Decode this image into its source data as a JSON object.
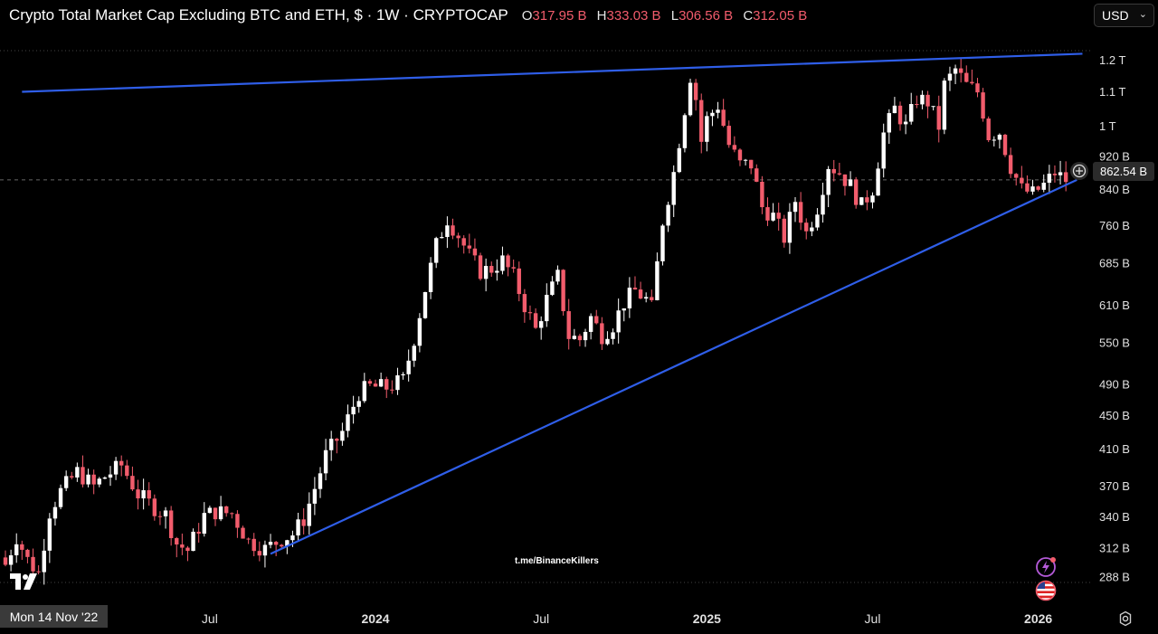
{
  "header": {
    "title": "Crypto Total Market Cap Excluding BTC and ETH, $ · 1W · CRYPTOCAP",
    "open_key": "O",
    "open": "317.95 B",
    "high_key": "H",
    "high": "333.03 B",
    "low_key": "L",
    "low": "306.56 B",
    "close_key": "C",
    "close": "312.05 B"
  },
  "currency_select": {
    "value": "USD"
  },
  "price_badge": "862.54 B",
  "date_badge": "Mon 14 Nov '22",
  "watermark": "t.me/BinanceKillers",
  "colors": {
    "up": "#ffffff",
    "down": "#f25c6c",
    "trendline": "#2f5ee8",
    "background": "#000000"
  },
  "icons": [
    "tradingview-logo-icon",
    "crosshair-plus-icon",
    "lightning-icon",
    "us-flag-icon",
    "gear-icon",
    "chevron-down-icon"
  ],
  "chart_data": {
    "type": "candlestick",
    "y_scale": "log",
    "ylim": [
      276,
      1270
    ],
    "y_ticks": [
      {
        "v": 1200,
        "label": "1.2 T"
      },
      {
        "v": 1100,
        "label": "1.1 T"
      },
      {
        "v": 1000,
        "label": "1 T"
      },
      {
        "v": 920,
        "label": "920 B"
      },
      {
        "v": 840,
        "label": "840 B"
      },
      {
        "v": 760,
        "label": "760 B"
      },
      {
        "v": 685,
        "label": "685 B"
      },
      {
        "v": 610,
        "label": "610 B"
      },
      {
        "v": 550,
        "label": "550 B"
      },
      {
        "v": 490,
        "label": "490 B"
      },
      {
        "v": 450,
        "label": "450 B"
      },
      {
        "v": 410,
        "label": "410 B"
      },
      {
        "v": 370,
        "label": "370 B"
      },
      {
        "v": 340,
        "label": "340 B"
      },
      {
        "v": 312,
        "label": "312 B"
      },
      {
        "v": 288,
        "label": "288 B"
      }
    ],
    "x_ticks": [
      {
        "week": 37,
        "label": "Jul",
        "bold": false
      },
      {
        "week": 67,
        "label": "2024",
        "bold": true
      },
      {
        "week": 97,
        "label": "Jul",
        "bold": false
      },
      {
        "week": 127,
        "label": "2025",
        "bold": true
      },
      {
        "week": 157,
        "label": "Jul",
        "bold": false
      },
      {
        "week": 187,
        "label": "2026",
        "bold": true
      }
    ],
    "current_price": 862.54,
    "trendlines": [
      {
        "name": "upper",
        "p1": {
          "week": 3,
          "value": 1100
        },
        "p2": {
          "week": 195,
          "value": 1222
        }
      },
      {
        "name": "lower",
        "p1": {
          "week": 48,
          "value": 307
        },
        "p2": {
          "week": 194,
          "value": 862.54
        }
      }
    ],
    "anchors": [
      [
        0,
        298
      ],
      [
        2,
        322
      ],
      [
        4,
        302
      ],
      [
        6,
        291
      ],
      [
        8,
        345
      ],
      [
        10,
        365
      ],
      [
        13,
        385
      ],
      [
        16,
        370
      ],
      [
        18,
        380
      ],
      [
        21,
        392
      ],
      [
        24,
        362
      ],
      [
        27,
        349
      ],
      [
        29,
        342
      ],
      [
        31,
        316
      ],
      [
        33,
        310
      ],
      [
        36,
        341
      ],
      [
        38,
        345
      ],
      [
        41,
        343
      ],
      [
        44,
        318
      ],
      [
        47,
        311
      ],
      [
        50,
        320
      ],
      [
        52,
        324
      ],
      [
        54,
        338
      ],
      [
        56,
        368
      ],
      [
        58,
        403
      ],
      [
        61,
        430
      ],
      [
        64,
        479
      ],
      [
        66,
        487
      ],
      [
        69,
        486
      ],
      [
        72,
        496
      ],
      [
        74,
        557
      ],
      [
        76,
        638
      ],
      [
        78,
        720
      ],
      [
        80,
        775
      ],
      [
        82,
        740
      ],
      [
        84,
        700
      ],
      [
        86,
        670
      ],
      [
        88,
        675
      ],
      [
        90,
        690
      ],
      [
        92,
        660
      ],
      [
        94,
        610
      ],
      [
        96,
        570
      ],
      [
        98,
        620
      ],
      [
        100,
        660
      ],
      [
        102,
        560
      ],
      [
        104,
        555
      ],
      [
        106,
        590
      ],
      [
        108,
        562
      ],
      [
        110,
        578
      ],
      [
        112,
        615
      ],
      [
        114,
        635
      ],
      [
        116,
        620
      ],
      [
        117,
        605
      ],
      [
        119,
        770
      ],
      [
        121,
        880
      ],
      [
        123,
        1050
      ],
      [
        124,
        1150
      ],
      [
        125,
        1080
      ],
      [
        126,
        960
      ],
      [
        127,
        1020
      ],
      [
        129,
        1060
      ],
      [
        131,
        950
      ],
      [
        133,
        900
      ],
      [
        135,
        900
      ],
      [
        137,
        800
      ],
      [
        139,
        780
      ],
      [
        141,
        735
      ],
      [
        143,
        815
      ],
      [
        145,
        745
      ],
      [
        147,
        800
      ],
      [
        149,
        900
      ],
      [
        151,
        880
      ],
      [
        153,
        848
      ],
      [
        155,
        802
      ],
      [
        157,
        842
      ],
      [
        159,
        980
      ],
      [
        161,
        1050
      ],
      [
        163,
        1000
      ],
      [
        165,
        1080
      ],
      [
        167,
        1070
      ],
      [
        169,
        1000
      ],
      [
        170,
        1120
      ],
      [
        172,
        1170
      ],
      [
        174,
        1120
      ],
      [
        176,
        1100
      ],
      [
        177,
        1040
      ],
      [
        178,
        975
      ],
      [
        180,
        985
      ],
      [
        182,
        895
      ],
      [
        184,
        840
      ],
      [
        186,
        830
      ],
      [
        188,
        850
      ],
      [
        190,
        880
      ],
      [
        191,
        870
      ],
      [
        192,
        862
      ]
    ]
  }
}
